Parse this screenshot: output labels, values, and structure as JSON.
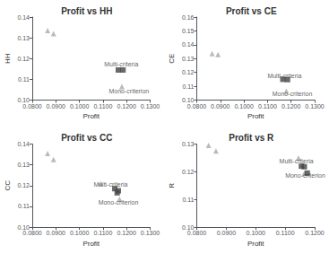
{
  "chart_data": [
    {
      "type": "scatter",
      "title": "Profit vs HH",
      "xlabel": "Profit",
      "ylabel": "HH",
      "xlim": [
        0.08,
        0.13
      ],
      "ylim": [
        0.1,
        0.14
      ],
      "xticks": [
        {
          "value": 0.08,
          "label": "0.0800"
        },
        {
          "value": 0.09,
          "label": "0.0900"
        },
        {
          "value": 0.1,
          "label": "0.1000"
        },
        {
          "value": 0.11,
          "label": "0.1100"
        },
        {
          "value": 0.12,
          "label": "0.1200"
        },
        {
          "value": 0.13,
          "label": "0.1300"
        }
      ],
      "yticks": [
        {
          "value": 0.1,
          "label": "0.10"
        },
        {
          "value": 0.11,
          "label": "0.11"
        },
        {
          "value": 0.12,
          "label": "0.12"
        },
        {
          "value": 0.13,
          "label": "0.13"
        },
        {
          "value": 0.14,
          "label": "0.14"
        }
      ],
      "grid": false,
      "series": [
        {
          "marker": "triangle",
          "color": "#aaaaaa",
          "x": [
            0.0865,
            0.089,
            0.118
          ],
          "values": [
            0.1335,
            0.132,
            0.1065
          ]
        },
        {
          "marker": "square",
          "color": "#444444",
          "x": [
            0.1165,
            0.1185
          ],
          "values": [
            0.1145,
            0.1145
          ]
        }
      ],
      "annotations": [
        {
          "x": 0.1105,
          "y": 0.1175,
          "text": "Multi-criteria"
        },
        {
          "x": 0.1125,
          "y": 0.1045,
          "text": "Mono-criterion"
        }
      ]
    },
    {
      "type": "scatter",
      "title": "Profit vs CE",
      "xlabel": "Profit",
      "ylabel": "CE",
      "xlim": [
        0.08,
        0.13
      ],
      "ylim": [
        0.1,
        0.16
      ],
      "xticks": [
        {
          "value": 0.08,
          "label": "0.0800"
        },
        {
          "value": 0.09,
          "label": "0.0900"
        },
        {
          "value": 0.1,
          "label": "0.1000"
        },
        {
          "value": 0.11,
          "label": "0.1100"
        },
        {
          "value": 0.12,
          "label": "0.1200"
        },
        {
          "value": 0.13,
          "label": "0.1300"
        }
      ],
      "yticks": [
        {
          "value": 0.1,
          "label": "0.10"
        },
        {
          "value": 0.11,
          "label": "0.11"
        },
        {
          "value": 0.12,
          "label": "0.12"
        },
        {
          "value": 0.13,
          "label": "0.13"
        },
        {
          "value": 0.14,
          "label": "0.14"
        },
        {
          "value": 0.15,
          "label": "0.15"
        },
        {
          "value": 0.16,
          "label": "0.16"
        }
      ],
      "grid": false,
      "series": [
        {
          "marker": "triangle",
          "color": "#aaaaaa",
          "x": [
            0.0865,
            0.089,
            0.118
          ],
          "values": [
            0.1335,
            0.133,
            0.1065
          ]
        },
        {
          "marker": "square",
          "color": "#444444",
          "x": [
            0.1165,
            0.1185
          ],
          "values": [
            0.115,
            0.1148
          ]
        }
      ],
      "annotations": [
        {
          "x": 0.11,
          "y": 0.1175,
          "text": "Multi-criteria"
        },
        {
          "x": 0.112,
          "y": 0.1045,
          "text": "Mono-criterion"
        }
      ]
    },
    {
      "type": "scatter",
      "title": "Profit vs CC",
      "xlabel": "Profit",
      "ylabel": "CC",
      "xlim": [
        0.08,
        0.13
      ],
      "ylim": [
        0.1,
        0.14
      ],
      "xticks": [
        {
          "value": 0.08,
          "label": "0.0800"
        },
        {
          "value": 0.09,
          "label": "0.0900"
        },
        {
          "value": 0.1,
          "label": "0.1000"
        },
        {
          "value": 0.11,
          "label": "0.1100"
        },
        {
          "value": 0.12,
          "label": "0.1200"
        },
        {
          "value": 0.13,
          "label": "0.1300"
        }
      ],
      "yticks": [
        {
          "value": 0.1,
          "label": "0.10"
        },
        {
          "value": 0.11,
          "label": "0.11"
        },
        {
          "value": 0.12,
          "label": "0.12"
        },
        {
          "value": 0.13,
          "label": "0.13"
        },
        {
          "value": 0.14,
          "label": "0.14"
        }
      ],
      "grid": false,
      "series": [
        {
          "marker": "triangle",
          "color": "#aaaaaa",
          "x": [
            0.0865,
            0.089,
            0.109,
            0.117
          ],
          "values": [
            0.1355,
            0.1325,
            0.121,
            0.1135
          ]
        },
        {
          "marker": "square",
          "color": "#444444",
          "x": [
            0.115,
            0.1165,
            0.116
          ],
          "values": [
            0.1185,
            0.1175,
            0.1165
          ]
        }
      ],
      "annotations": [
        {
          "x": 0.106,
          "y": 0.1205,
          "text": "Multi-criteria"
        },
        {
          "x": 0.108,
          "y": 0.112,
          "text": "Mono-criterion"
        }
      ]
    },
    {
      "type": "scatter",
      "title": "Profit vs R",
      "xlabel": "Profit",
      "ylabel": "R",
      "xlim": [
        0.08,
        0.12
      ],
      "ylim": [
        0.1,
        0.13
      ],
      "xticks": [
        {
          "value": 0.08,
          "label": "0.0800"
        },
        {
          "value": 0.09,
          "label": "0.0900"
        },
        {
          "value": 0.1,
          "label": "0.1000"
        },
        {
          "value": 0.11,
          "label": "0.1100"
        },
        {
          "value": 0.12,
          "label": "0.1200"
        }
      ],
      "yticks": [
        {
          "value": 0.1,
          "label": "0.10"
        },
        {
          "value": 0.11,
          "label": "0.11"
        },
        {
          "value": 0.12,
          "label": "0.12"
        },
        {
          "value": 0.13,
          "label": "0.13"
        }
      ],
      "grid": false,
      "series": [
        {
          "marker": "triangle",
          "color": "#aaaaaa",
          "x": [
            0.084,
            0.0865,
            0.1145,
            0.1165
          ],
          "values": [
            0.1295,
            0.1275,
            0.125,
            0.1195
          ]
        },
        {
          "marker": "square",
          "color": "#444444",
          "x": [
            0.1155,
            0.1165,
            0.1175
          ],
          "values": [
            0.122,
            0.1218,
            0.1195
          ]
        }
      ],
      "annotations": [
        {
          "x": 0.108,
          "y": 0.124,
          "text": "Multi-criteria"
        },
        {
          "x": 0.11,
          "y": 0.1185,
          "text": "Mono-criterion"
        }
      ]
    }
  ]
}
